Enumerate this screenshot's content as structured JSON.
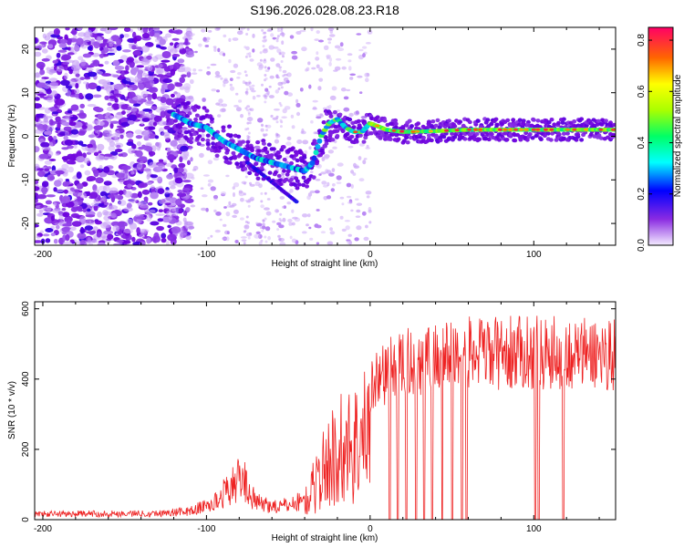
{
  "figure": {
    "title": "S196.2026.028.08.23.R18"
  },
  "chart_data": [
    {
      "type": "heatmap",
      "name": "spectrogram",
      "xlabel": "Height of straight line (km)",
      "ylabel": "Frequency (Hz)",
      "xlim": [
        -205,
        150
      ],
      "ylim": [
        -25,
        25
      ],
      "xticks": [
        -200,
        -100,
        0,
        100
      ],
      "xtick_labels": [
        "-200",
        "-100",
        "0",
        "100"
      ],
      "yticks": [
        -20,
        -10,
        0,
        10,
        20
      ],
      "ytick_labels": [
        "-20",
        "-10",
        "0",
        "10",
        "20"
      ],
      "colorbar": {
        "label": "Normalized spectral amplitude",
        "range": [
          0.0,
          0.85
        ],
        "ticks": [
          0.0,
          0.2,
          0.4,
          0.6,
          0.8
        ],
        "tick_labels": [
          "0.0",
          "0.2",
          "0.4",
          "0.6",
          "0.8"
        ]
      },
      "ridge": {
        "description_points_km_hz": [
          [
            -120,
            5
          ],
          [
            -110,
            3
          ],
          [
            -100,
            2
          ],
          [
            -90,
            -1
          ],
          [
            -80,
            -3
          ],
          [
            -70,
            -5
          ],
          [
            -60,
            -6
          ],
          [
            -50,
            -7
          ],
          [
            -40,
            -8
          ],
          [
            -35,
            -6
          ],
          [
            -30,
            0
          ],
          [
            -25,
            3
          ],
          [
            -20,
            4
          ],
          [
            -15,
            2
          ],
          [
            -10,
            1
          ],
          [
            -5,
            1
          ],
          [
            0,
            3
          ],
          [
            10,
            1.5
          ],
          [
            20,
            1
          ],
          [
            40,
            1.2
          ],
          [
            60,
            1.5
          ],
          [
            80,
            1.5
          ],
          [
            100,
            1.5
          ],
          [
            120,
            1.5
          ],
          [
            150,
            1.5
          ]
        ]
      }
    },
    {
      "type": "line",
      "name": "snr",
      "xlabel": "Height of straight line (km)",
      "ylabel": "SNR (10 * v/v)",
      "xlim": [
        -205,
        150
      ],
      "ylim": [
        0,
        620
      ],
      "xticks": [
        -200,
        -100,
        0,
        100
      ],
      "xtick_labels": [
        "-200",
        "-100",
        "0",
        "100"
      ],
      "yticks": [
        0,
        200,
        400,
        600
      ],
      "ytick_labels": [
        "0",
        "200",
        "400",
        "600"
      ],
      "color": "#ee2222",
      "envelope_km_snr": [
        [
          -205,
          20
        ],
        [
          -130,
          22
        ],
        [
          -110,
          30
        ],
        [
          -95,
          60
        ],
        [
          -85,
          120
        ],
        [
          -78,
          150
        ],
        [
          -70,
          60
        ],
        [
          -55,
          45
        ],
        [
          -40,
          70
        ],
        [
          -30,
          200
        ],
        [
          -20,
          300
        ],
        [
          -10,
          330
        ],
        [
          0,
          380
        ],
        [
          10,
          420
        ],
        [
          20,
          440
        ],
        [
          40,
          460
        ],
        [
          60,
          470
        ],
        [
          80,
          470
        ],
        [
          100,
          475
        ],
        [
          120,
          470
        ],
        [
          150,
          470
        ]
      ],
      "dropouts_km": [
        12,
        17,
        22,
        28,
        33,
        38,
        44,
        50,
        56,
        59,
        101,
        103,
        118
      ]
    }
  ]
}
